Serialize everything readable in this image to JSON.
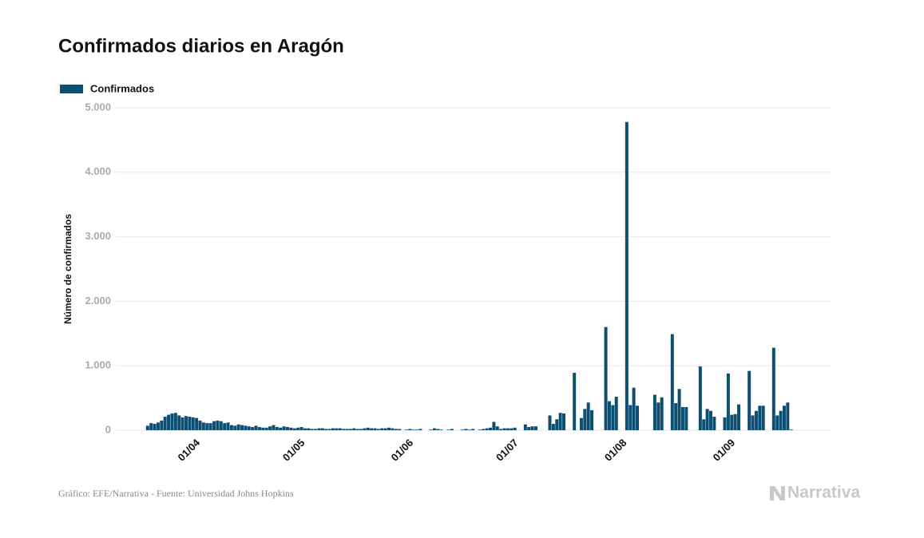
{
  "chart_data": {
    "type": "bar",
    "title": "Confirmados diarios en Aragón",
    "y_label": "Número de confirmados",
    "source": "Gráfico: EFE/Narrativa - Fuente: Universidad Johns Hopkins",
    "brand": "Narrativa",
    "grid": true,
    "ylim": [
      0,
      5000
    ],
    "yticks": [
      0,
      {
        "value": 1000,
        "label": "1.000"
      },
      {
        "value": 2000,
        "label": "2.000"
      },
      {
        "value": 3000,
        "label": "3.000"
      },
      {
        "value": 4000,
        "label": "4.000"
      },
      {
        "value": 5000,
        "label": "5.000"
      }
    ],
    "categories": [
      null,
      null,
      null,
      null,
      null,
      null,
      null,
      null,
      null,
      null,
      null,
      null,
      "01/04",
      null,
      null,
      null,
      null,
      null,
      null,
      null,
      null,
      null,
      null,
      null,
      null,
      null,
      null,
      null,
      null,
      null,
      null,
      null,
      null,
      null,
      null,
      null,
      null,
      null,
      null,
      null,
      null,
      null,
      "01/05",
      null,
      null,
      null,
      null,
      null,
      null,
      null,
      null,
      null,
      null,
      null,
      null,
      null,
      null,
      null,
      null,
      null,
      null,
      null,
      null,
      null,
      null,
      null,
      null,
      null,
      null,
      null,
      null,
      null,
      null,
      "01/06",
      null,
      null,
      null,
      null,
      null,
      null,
      null,
      null,
      null,
      null,
      null,
      null,
      null,
      null,
      null,
      null,
      null,
      null,
      null,
      null,
      null,
      null,
      null,
      null,
      null,
      null,
      null,
      null,
      null,
      "01/07",
      null,
      null,
      null,
      null,
      null,
      null,
      null,
      null,
      null,
      null,
      null,
      null,
      null,
      null,
      null,
      null,
      null,
      null,
      null,
      null,
      null,
      null,
      null,
      null,
      null,
      null,
      null,
      null,
      null,
      null,
      "01/08",
      null,
      null,
      null,
      null,
      null,
      null,
      null,
      null,
      null,
      null,
      null,
      null,
      null,
      null,
      null,
      null,
      null,
      null,
      null,
      null,
      null,
      null,
      null,
      null,
      null,
      null,
      null,
      null,
      null,
      null,
      "01/09",
      null,
      null,
      null,
      null,
      null,
      null,
      null,
      null,
      null,
      null,
      null,
      null,
      null,
      null,
      null,
      null,
      null,
      null,
      null
    ],
    "series": [
      {
        "name": "Confirmados",
        "color": "#0d4f73",
        "values": [
          70,
          110,
          100,
          120,
          150,
          210,
          240,
          260,
          270,
          230,
          200,
          220,
          210,
          200,
          190,
          150,
          120,
          110,
          110,
          140,
          150,
          140,
          110,
          120,
          80,
          70,
          90,
          80,
          70,
          60,
          50,
          70,
          50,
          40,
          40,
          60,
          80,
          50,
          40,
          60,
          50,
          40,
          30,
          40,
          50,
          30,
          30,
          20,
          20,
          30,
          30,
          20,
          20,
          30,
          30,
          30,
          20,
          20,
          20,
          30,
          20,
          20,
          30,
          40,
          30,
          30,
          20,
          30,
          30,
          40,
          30,
          20,
          20,
          0,
          10,
          20,
          10,
          10,
          20,
          0,
          0,
          10,
          30,
          20,
          10,
          0,
          10,
          20,
          0,
          0,
          10,
          20,
          10,
          20,
          0,
          10,
          20,
          30,
          40,
          130,
          60,
          20,
          30,
          30,
          30,
          40,
          0,
          0,
          90,
          50,
          60,
          60,
          0,
          0,
          0,
          230,
          100,
          170,
          270,
          260,
          0,
          0,
          890,
          0,
          190,
          330,
          430,
          310,
          0,
          0,
          0,
          1600,
          450,
          390,
          520,
          0,
          0,
          4780,
          390,
          660,
          380,
          0,
          0,
          0,
          0,
          550,
          430,
          510,
          0,
          0,
          1490,
          420,
          640,
          360,
          360,
          0,
          0,
          0,
          990,
          170,
          330,
          300,
          210,
          0,
          0,
          200,
          880,
          240,
          250,
          400,
          0,
          0,
          920,
          230,
          300,
          380,
          380,
          0,
          0,
          1280,
          230,
          300,
          380,
          430,
          10
        ]
      }
    ]
  }
}
